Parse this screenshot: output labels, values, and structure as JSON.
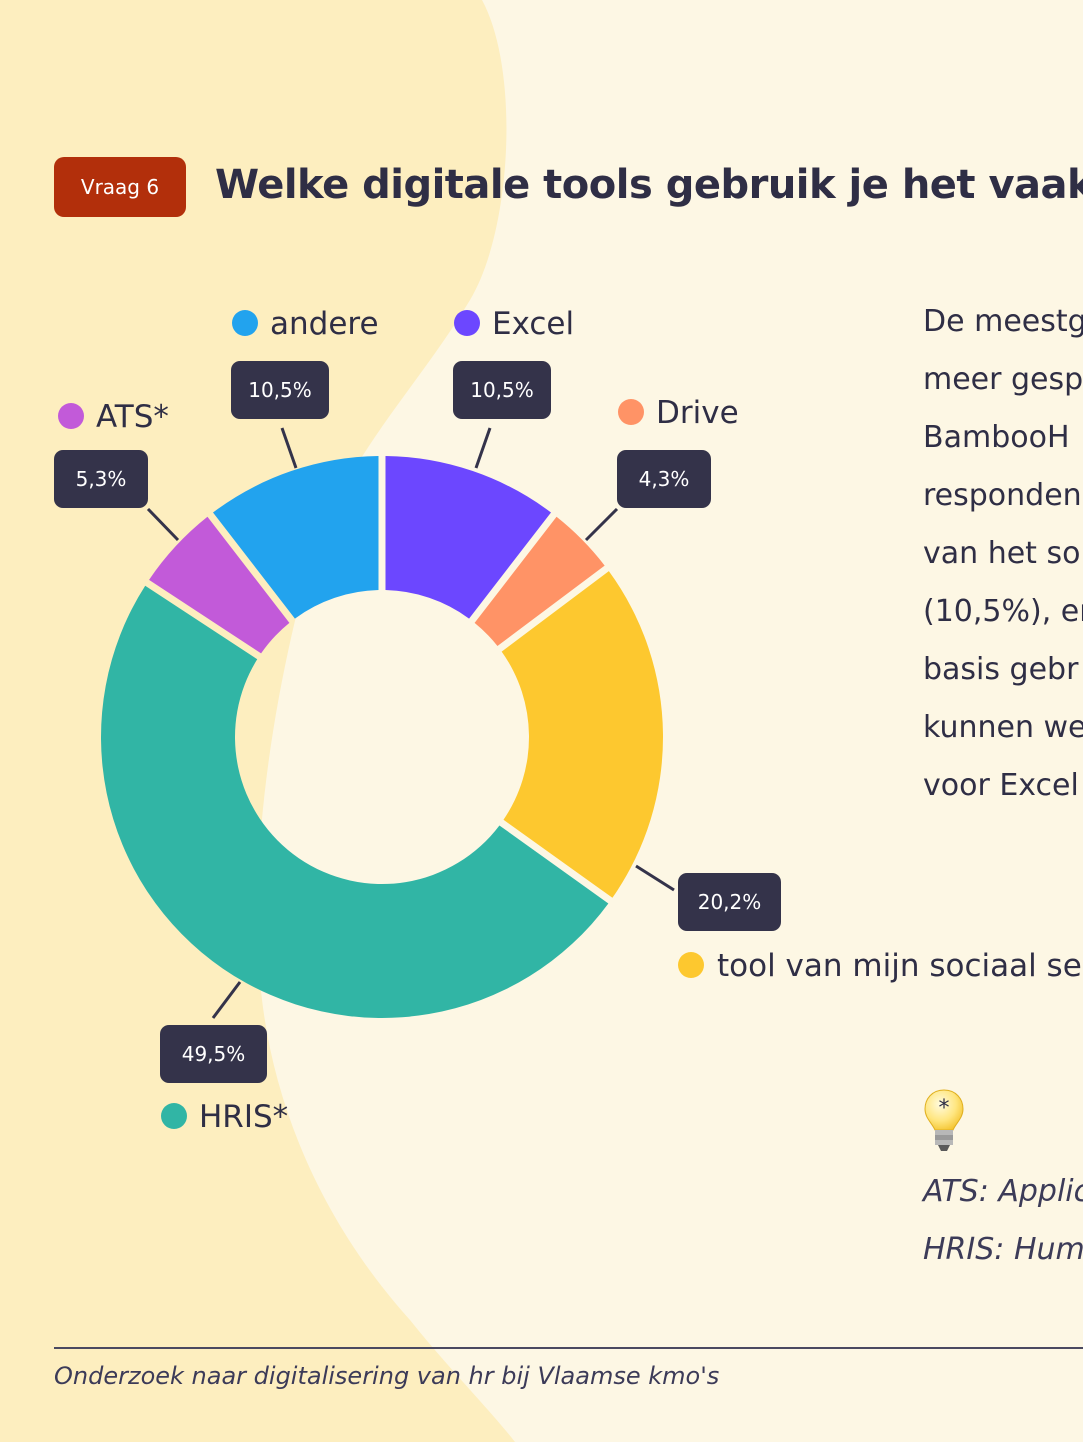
{
  "header": {
    "badge": "Vraag 6",
    "title": "Welke digitale tools gebruik je het vaakst"
  },
  "chart_data": {
    "type": "pie",
    "donut": true,
    "title": "",
    "slices": [
      {
        "label": "Excel",
        "value": 10.5,
        "display": "10,5%",
        "color": "#6c47ff"
      },
      {
        "label": "Drive",
        "value": 4.3,
        "display": "4,3%",
        "color": "#ff9366"
      },
      {
        "label": "tool van mijn sociaal se",
        "value": 20.2,
        "display": "20,2%",
        "color": "#fdc82f"
      },
      {
        "label": "HRIS*",
        "value": 49.5,
        "display": "49,5%",
        "color": "#31b5a5"
      },
      {
        "label": "ATS*",
        "value": 5.3,
        "display": "5,3%",
        "color": "#c25ad9"
      },
      {
        "label": "andere",
        "value": 10.5,
        "display": "10,5%",
        "color": "#22a3ee"
      }
    ],
    "legend": "labels placed next to each slice"
  },
  "side_text": {
    "lines": [
      "De meestg",
      "meer gesp",
      "BambooH",
      "responden",
      "van het so",
      "(10,5%), en",
      "basis gebr",
      "kunnen we",
      "voor Excel"
    ]
  },
  "footnotes": {
    "bulb_icon": "lightbulb-icon",
    "bulb_mark": "*",
    "ats": "ATS: Applic",
    "hris": "HRIS: Huma"
  },
  "footer": {
    "text": "Onderzoek naar digitalisering van hr bij Vlaamse kmo's"
  },
  "colors": {
    "background": "#fdf7e4",
    "wave": "#fdeebf",
    "badge": "#b22f0b",
    "label_box": "#34334a",
    "text": "#2f2e45"
  }
}
